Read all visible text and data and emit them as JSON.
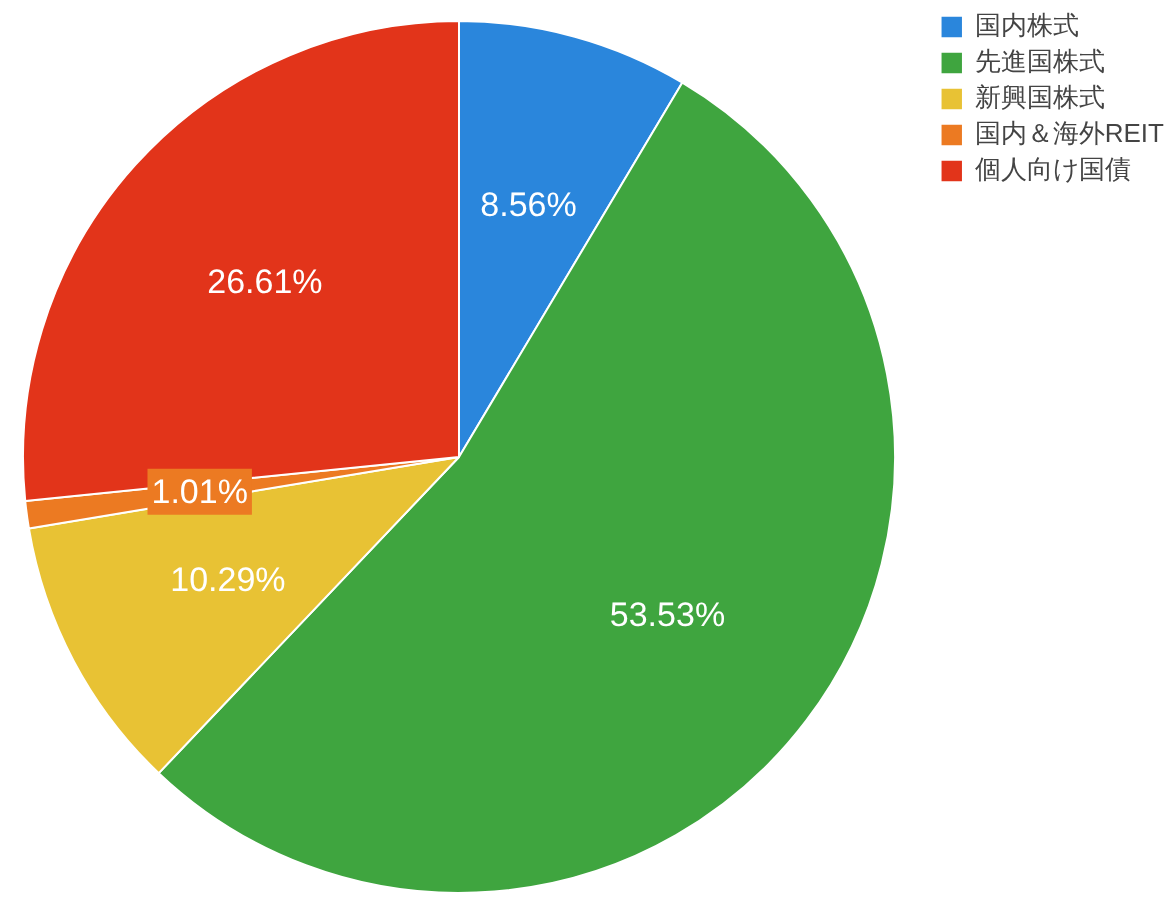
{
  "chart_data": {
    "type": "pie",
    "categories": [
      "国内株式",
      "先進国株式",
      "新興国株式",
      "国内＆海外REIT",
      "個人向け国債"
    ],
    "values": [
      8.56,
      53.53,
      10.29,
      1.01,
      26.61
    ],
    "colors": [
      "#2a86dc",
      "#3fa53f",
      "#e8c234",
      "#ec7a22",
      "#e2341a"
    ],
    "value_labels": [
      "8.56%",
      "53.53%",
      "10.29%",
      "1.01%",
      "26.61%"
    ],
    "legend": "top right"
  }
}
